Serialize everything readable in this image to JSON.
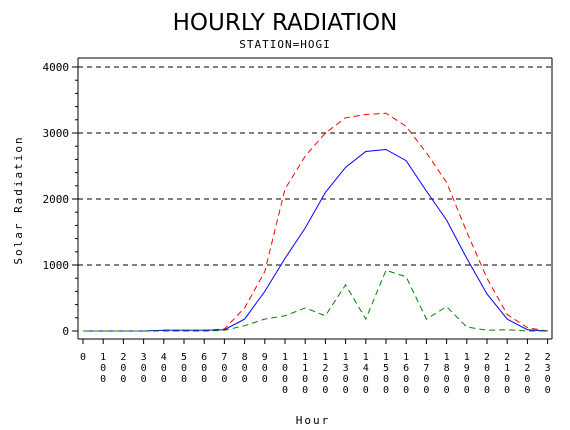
{
  "chart_data": {
    "type": "line",
    "title": "HOURLY RADIATION",
    "subtitle": "STATION=HOGI",
    "xlabel": "Hour",
    "ylabel": "Solar Radiation",
    "ylim": [
      0,
      4000
    ],
    "xlim": [
      0,
      2300
    ],
    "yticks": [
      0,
      1000,
      2000,
      3000,
      4000
    ],
    "ytick_labels": [
      "0",
      "1000",
      "2000",
      "3000",
      "4000"
    ],
    "x": [
      0,
      100,
      200,
      300,
      400,
      500,
      600,
      700,
      800,
      900,
      1000,
      1100,
      1200,
      1300,
      1400,
      1500,
      1600,
      1700,
      1800,
      1900,
      2000,
      2100,
      2200,
      2300
    ],
    "xtick_labels": [
      "0",
      "100",
      "200",
      "300",
      "400",
      "500",
      "600",
      "700",
      "800",
      "900",
      "1000",
      "1100",
      "1200",
      "1300",
      "1400",
      "1500",
      "1600",
      "1700",
      "1800",
      "1900",
      "2000",
      "2100",
      "2200",
      "2300"
    ],
    "grid": "horizontal dashed",
    "series": [
      {
        "color": "#ff0000",
        "dash": "dashed",
        "values": [
          0,
          0,
          0,
          0,
          10,
          10,
          10,
          30,
          350,
          900,
          2150,
          2650,
          3000,
          3230,
          3280,
          3300,
          3100,
          2700,
          2250,
          1500,
          800,
          250,
          50,
          0
        ]
      },
      {
        "color": "#0000ff",
        "dash": "solid",
        "values": [
          0,
          0,
          0,
          0,
          10,
          10,
          10,
          20,
          180,
          600,
          1100,
          1560,
          2100,
          2480,
          2720,
          2750,
          2580,
          2120,
          1680,
          1100,
          560,
          180,
          20,
          0
        ]
      },
      {
        "color": "#008000",
        "dash": "dashed",
        "values": [
          0,
          0,
          0,
          0,
          0,
          0,
          0,
          10,
          80,
          180,
          230,
          350,
          230,
          700,
          180,
          920,
          820,
          180,
          370,
          60,
          10,
          20,
          0,
          0
        ]
      }
    ]
  }
}
